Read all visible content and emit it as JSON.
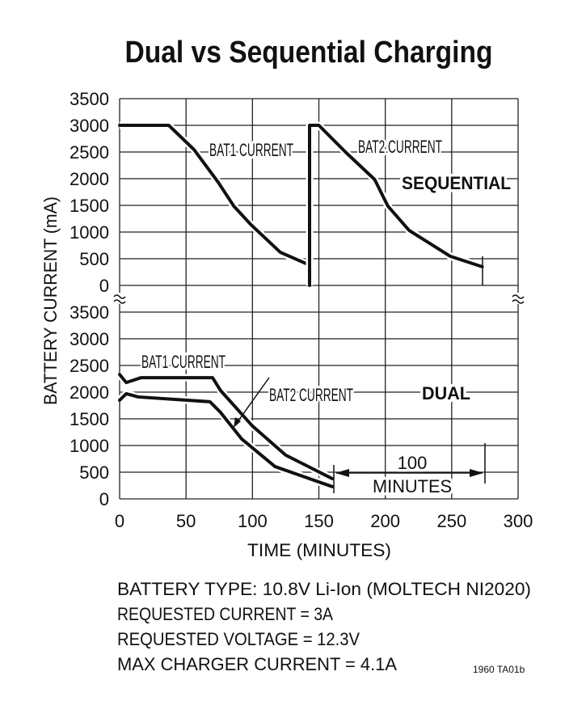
{
  "title": "Dual vs Sequential Charging",
  "footnote_id": "1960 TA01b",
  "notes": [
    "BATTERY TYPE: 10.8V Li-Ion (MOLTECH NI2020)",
    "REQUESTED CURRENT = 3A",
    "REQUESTED VOLTAGE = 12.3V",
    "MAX CHARGER CURRENT = 4.1A"
  ],
  "chart_data": {
    "type": "line",
    "title": "Dual vs Sequential Charging",
    "xlabel": "TIME (MINUTES)",
    "ylabel": "BATTERY CURRENT (mA)",
    "xlim": [
      0,
      300
    ],
    "x_ticks": [
      "0",
      "50",
      "100",
      "150",
      "200",
      "250",
      "300"
    ],
    "y_ticks": [
      "0",
      "500",
      "1000",
      "1500",
      "2000",
      "2500",
      "3000",
      "3500"
    ],
    "grid": true,
    "panels": [
      {
        "label": "SEQUENTIAL",
        "ylim": [
          0,
          3500
        ],
        "series": [
          {
            "name": "BAT1 CURRENT",
            "x": [
              0,
              37,
              56,
              74,
              86,
              99,
              121,
              143
            ],
            "y": [
              3000,
              3000,
              2545,
              1940,
              1485,
              1135,
              620,
              380
            ]
          },
          {
            "name": "BAT2 CURRENT",
            "x": [
              143,
              143,
              150,
              170,
              192,
              202,
              218,
              249,
              273
            ],
            "y": [
              0,
              3000,
              3000,
              2500,
              1985,
              1485,
              1030,
              545,
              350
            ]
          }
        ]
      },
      {
        "label": "DUAL",
        "ylim": [
          0,
          3500
        ],
        "series": [
          {
            "name": "BAT1 CURRENT",
            "x": [
              0,
              5,
              16,
              70,
              76,
              100,
              125,
              160
            ],
            "y": [
              2330,
              2180,
              2270,
              2270,
              2030,
              1365,
              820,
              380
            ]
          },
          {
            "name": "BAT2 CURRENT",
            "x": [
              0,
              5,
              14,
              68,
              76,
              92,
              117,
              160
            ],
            "y": [
              1850,
              1970,
              1910,
              1820,
              1620,
              1120,
              605,
              230
            ]
          }
        ]
      }
    ],
    "annotation": {
      "text_line1": "100",
      "text_line2": "MINUTES"
    }
  }
}
